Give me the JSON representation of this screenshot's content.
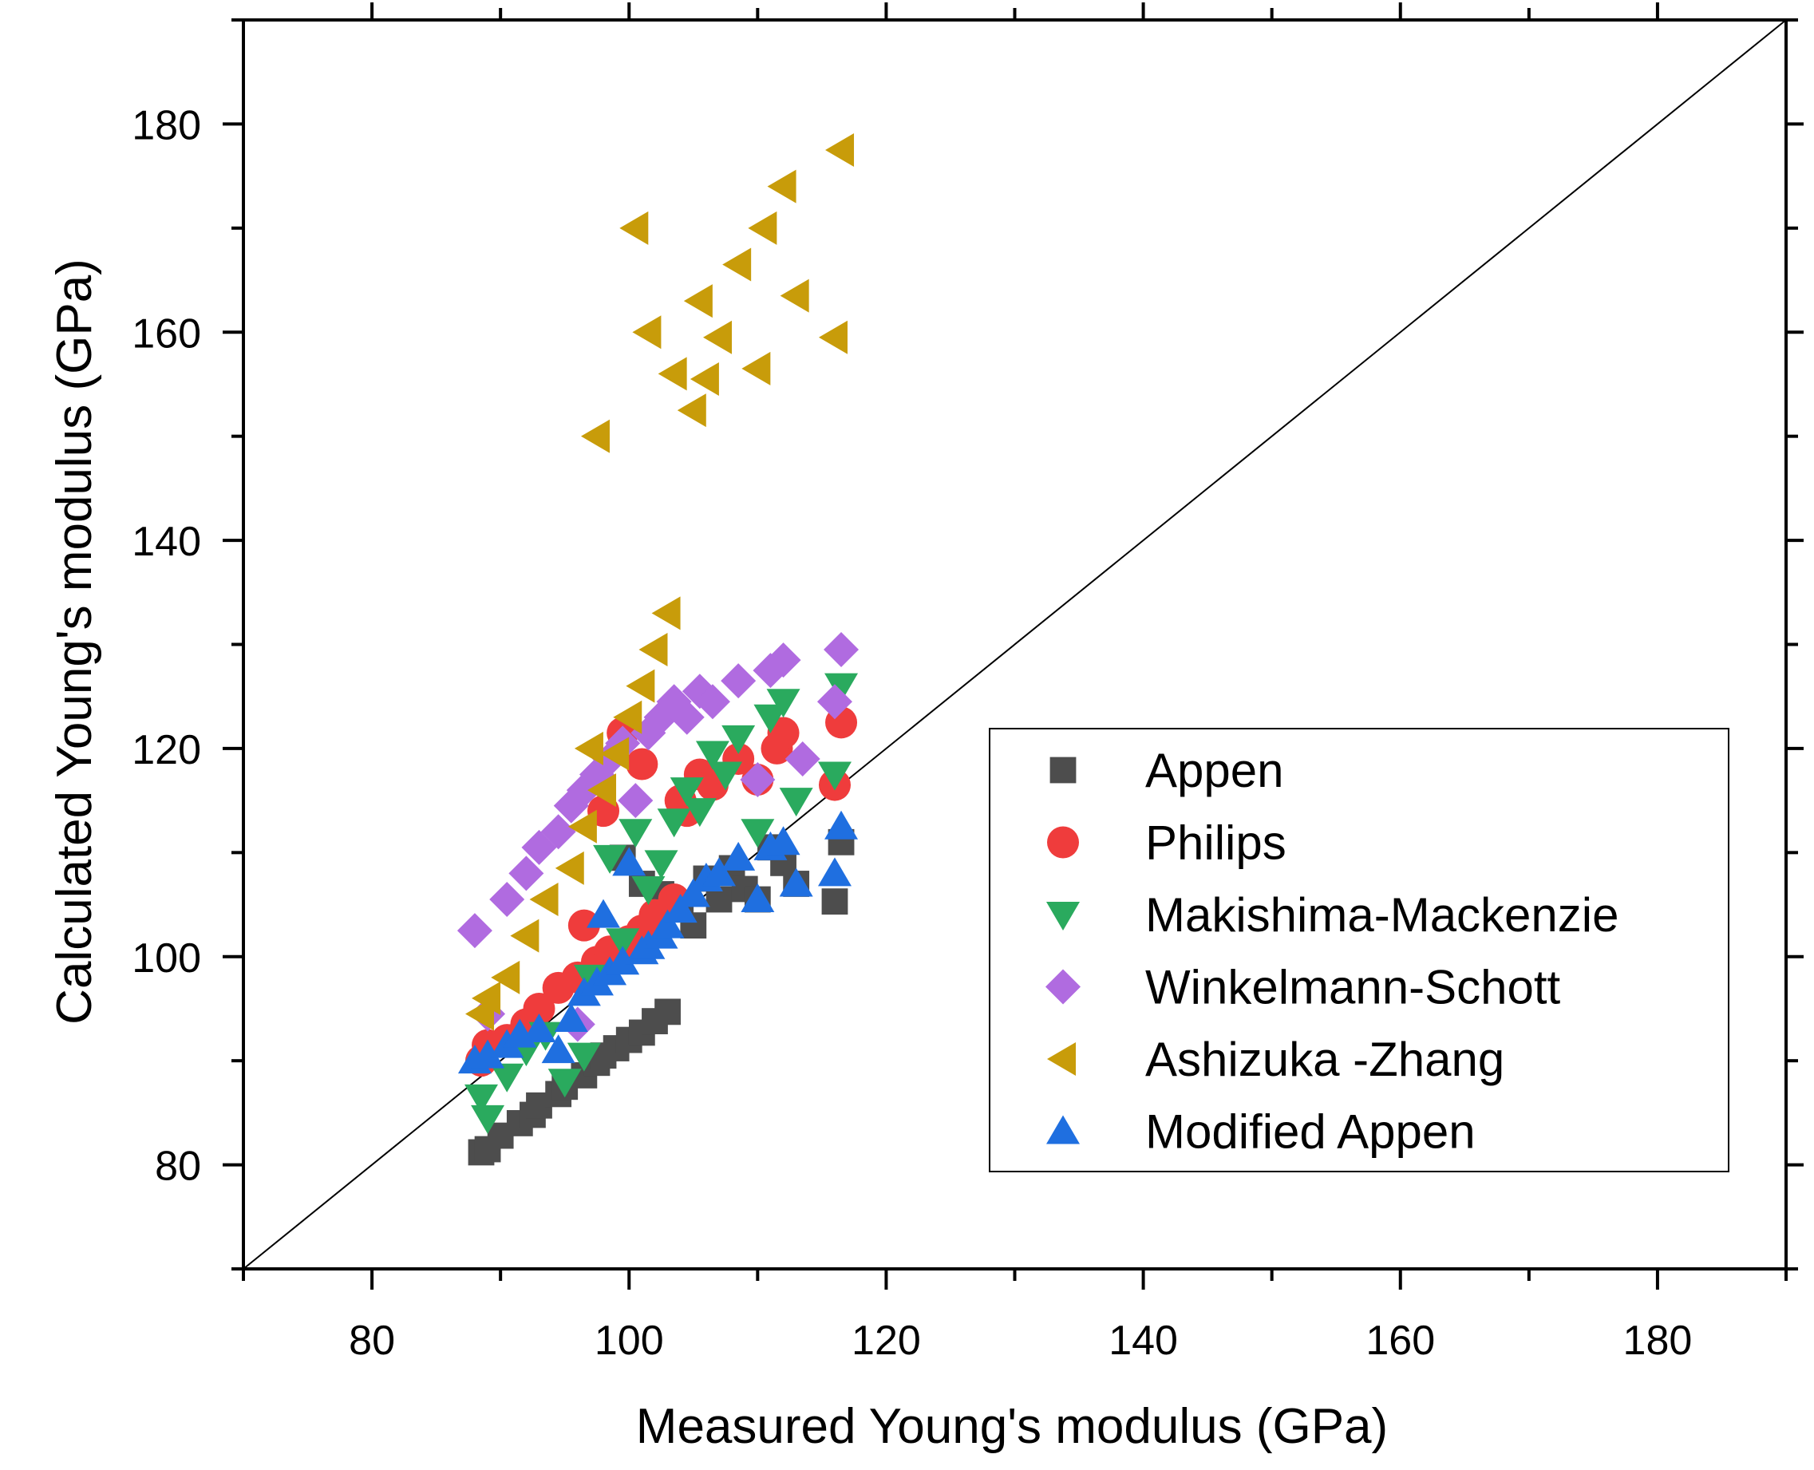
{
  "chart_data": {
    "type": "scatter",
    "xlabel": "Measured Young's modulus (GPa)",
    "ylabel": "Calculated Young's modulus (GPa)",
    "xlim": [
      70,
      190
    ],
    "ylim": [
      70,
      190
    ],
    "xticks": [
      80,
      100,
      120,
      140,
      160,
      180
    ],
    "yticks": [
      80,
      100,
      120,
      140,
      160,
      180
    ],
    "xticklabels": [
      "80",
      "100",
      "120",
      "140",
      "160",
      "180"
    ],
    "yticklabels": [
      "80",
      "100",
      "120",
      "140",
      "160",
      "180"
    ],
    "grid": false,
    "reference_line": "y = x",
    "legend_position": "lower-right",
    "series": [
      {
        "name": "Appen",
        "marker": "square",
        "color": "#4d4d4d",
        "x": [
          88.5,
          89.0,
          90.0,
          91.5,
          92.5,
          93.0,
          94.5,
          95.0,
          96.5,
          97.5,
          98.0,
          99.0,
          100.0,
          101.0,
          102.0,
          103.0,
          99.5,
          101.0,
          102.5,
          104.0,
          105.0,
          106.0,
          107.0,
          108.0,
          109.0,
          110.0,
          111.0,
          112.0,
          113.0,
          116.0,
          116.5
        ],
        "y": [
          81.2,
          81.5,
          82.8,
          84.0,
          84.8,
          85.7,
          86.8,
          87.5,
          88.6,
          89.8,
          90.5,
          91.2,
          92.0,
          92.7,
          93.8,
          94.7,
          109.5,
          107.0,
          106.0,
          105.0,
          103.0,
          107.5,
          105.5,
          108.5,
          106.5,
          105.5,
          110.5,
          109.0,
          107.0,
          105.3,
          111.0
        ]
      },
      {
        "name": "Philips",
        "marker": "circle",
        "color": "#ef3c3c",
        "x": [
          88.5,
          89.0,
          90.5,
          92.0,
          93.0,
          94.5,
          96.0,
          96.5,
          97.5,
          98.5,
          100.0,
          101.0,
          102.0,
          103.5,
          104.5,
          105.5,
          106.5,
          108.5,
          110.0,
          111.5,
          112.0,
          116.0,
          116.5,
          98.0,
          99.5,
          101.0,
          104.0
        ],
        "y": [
          90.0,
          91.5,
          92.0,
          93.5,
          95.0,
          97.0,
          98.0,
          103.0,
          99.5,
          100.5,
          101.5,
          102.5,
          104.0,
          105.5,
          114.0,
          117.5,
          116.5,
          119.0,
          117.0,
          120.0,
          121.5,
          116.5,
          122.5,
          114.0,
          121.5,
          118.5,
          115.0
        ]
      },
      {
        "name": "Makishima-Mackenzie",
        "marker": "triangle-down",
        "color": "#2aaa5e",
        "x": [
          88.5,
          89.0,
          90.5,
          92.0,
          93.5,
          95.0,
          96.5,
          97.0,
          98.5,
          99.5,
          100.5,
          101.5,
          102.5,
          103.5,
          104.5,
          105.5,
          106.5,
          107.5,
          108.5,
          110.0,
          111.0,
          112.0,
          113.0,
          116.0,
          116.5
        ],
        "y": [
          86.5,
          84.5,
          88.5,
          91.0,
          92.5,
          88.0,
          90.5,
          98.0,
          109.5,
          101.5,
          112.0,
          106.5,
          109.0,
          113.0,
          116.0,
          114.0,
          119.5,
          117.5,
          121.0,
          112.0,
          123.0,
          124.5,
          115.0,
          117.5,
          126.0
        ]
      },
      {
        "name": "Winkelmann-Schott",
        "marker": "diamond",
        "color": "#b06be0",
        "x": [
          88.0,
          89.0,
          90.5,
          92.0,
          93.0,
          94.5,
          95.5,
          96.5,
          97.5,
          98.5,
          99.5,
          100.5,
          101.5,
          102.5,
          103.5,
          104.5,
          105.5,
          106.5,
          108.5,
          110.0,
          111.0,
          112.0,
          113.5,
          116.0,
          116.5,
          96.0
        ],
        "y": [
          102.5,
          94.5,
          105.5,
          108.0,
          110.5,
          112.0,
          114.5,
          116.0,
          117.5,
          119.0,
          120.5,
          115.0,
          121.5,
          123.0,
          124.5,
          123.0,
          125.5,
          124.5,
          126.5,
          117.0,
          127.5,
          128.5,
          119.0,
          124.5,
          129.5,
          93.5
        ]
      },
      {
        "name": "Ashizuka -Zhang",
        "marker": "triangle-left",
        "color": "#c89c0a",
        "x": [
          88.5,
          89.0,
          90.5,
          92.0,
          93.5,
          95.5,
          96.5,
          97.0,
          98.0,
          99.0,
          100.0,
          101.0,
          102.0,
          103.0,
          97.5,
          100.5,
          101.5,
          103.5,
          105.0,
          105.5,
          106.0,
          107.0,
          108.5,
          110.0,
          110.5,
          112.0,
          113.0,
          116.0,
          116.5
        ],
        "y": [
          94.5,
          96.0,
          98.0,
          102.0,
          105.5,
          108.5,
          112.5,
          120.0,
          116.0,
          119.5,
          123.0,
          126.0,
          129.5,
          133.0,
          150.0,
          170.0,
          160.0,
          156.0,
          152.5,
          163.0,
          155.5,
          159.5,
          166.5,
          156.5,
          170.0,
          174.0,
          163.5,
          159.5,
          177.5
        ]
      },
      {
        "name": "Modified Appen",
        "marker": "triangle-up",
        "color": "#1f6fe0",
        "x": [
          88.0,
          89.0,
          90.5,
          91.5,
          93.0,
          94.5,
          95.5,
          96.5,
          97.5,
          98.0,
          98.5,
          99.5,
          100.0,
          101.0,
          101.5,
          102.5,
          103.0,
          104.0,
          105.0,
          106.0,
          107.0,
          108.5,
          110.0,
          111.0,
          112.0,
          113.0,
          116.0,
          116.5
        ],
        "y": [
          90.0,
          90.5,
          91.5,
          92.5,
          93.0,
          91.0,
          94.0,
          96.5,
          97.5,
          104.0,
          98.5,
          99.5,
          109.0,
          100.5,
          101.0,
          102.0,
          103.0,
          104.5,
          106.0,
          107.5,
          108.0,
          109.5,
          105.5,
          110.5,
          111.0,
          107.0,
          108.0,
          112.5
        ]
      }
    ]
  }
}
